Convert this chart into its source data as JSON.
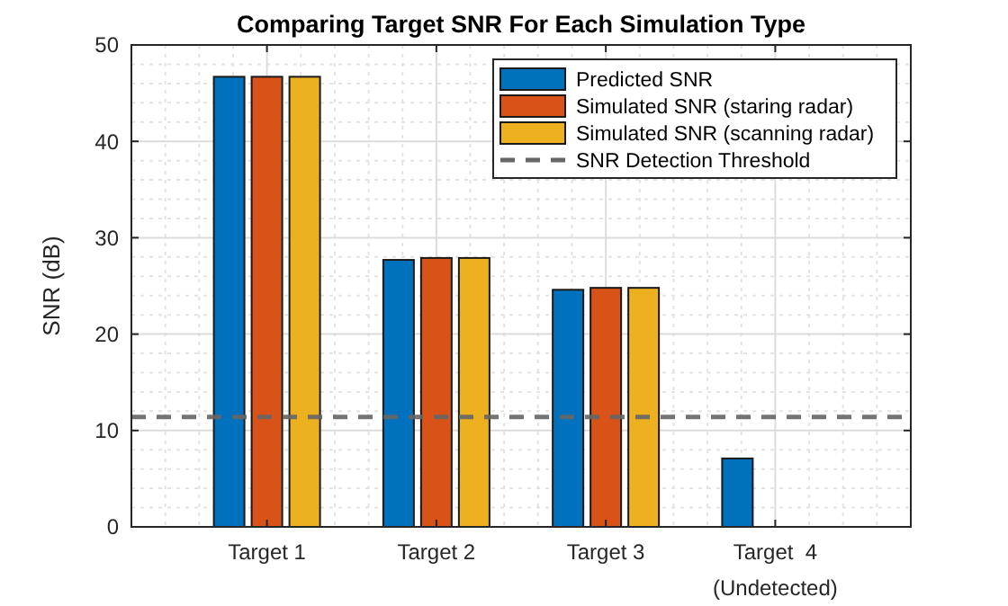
{
  "chart_data": {
    "type": "bar",
    "title": "Comparing Target SNR For Each Simulation Type",
    "ylabel": "SNR (dB)",
    "categories": [
      "Target 1",
      "Target 2",
      "Target 3",
      "Target  4\n(Undetected)"
    ],
    "series": [
      {
        "name": "Predicted SNR",
        "color": "#0072bd",
        "values": [
          46.7,
          27.7,
          24.6,
          7.1
        ]
      },
      {
        "name": "Simulated SNR (staring radar)",
        "color": "#d95319",
        "values": [
          46.7,
          27.9,
          24.8,
          null
        ]
      },
      {
        "name": "Simulated SNR (scanning radar)",
        "color": "#edb120",
        "values": [
          46.7,
          27.9,
          24.8,
          null
        ]
      }
    ],
    "ref_lines": [
      {
        "axis": "y",
        "value": 11.4,
        "label": "SNR Detection Threshold",
        "color": "#666666",
        "line_style": "dashed"
      }
    ],
    "ylim": [
      0,
      50
    ],
    "yticks": [
      0,
      10,
      20,
      30,
      40,
      50
    ],
    "grid": true,
    "legend": "top right"
  }
}
